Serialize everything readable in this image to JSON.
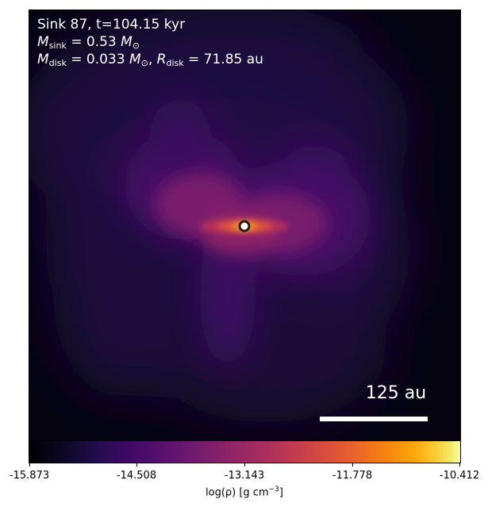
{
  "header": {
    "sink_line": "Sink 87, t=104.15 kyr",
    "m_sink_symbol": "M",
    "m_sink_sub": "sink",
    "m_sink_value": "= 0.53",
    "m_sink_unit": "M",
    "m_sink_unit_sub": "⊙",
    "m_disk_symbol": "M",
    "m_disk_sub": "disk",
    "m_disk_value": "= 0.033",
    "m_disk_unit": "M",
    "m_disk_unit_sub": "⊙",
    "r_disk_symbol": "R",
    "r_disk_sub": "disk",
    "r_disk_value": "= 71.85 au"
  },
  "scalebar": {
    "label": "125 au"
  },
  "colorbar": {
    "ticks": [
      "-15.873",
      "-14.508",
      "-13.143",
      "-11.778",
      "-10.412"
    ],
    "label_main": "log(ρ) [g cm",
    "label_exp": "−3",
    "label_close": "]",
    "colormap": "inferno"
  },
  "colors": {
    "background": "#000004",
    "text": "#ffffff",
    "sink_marker": "#ffffff"
  }
}
